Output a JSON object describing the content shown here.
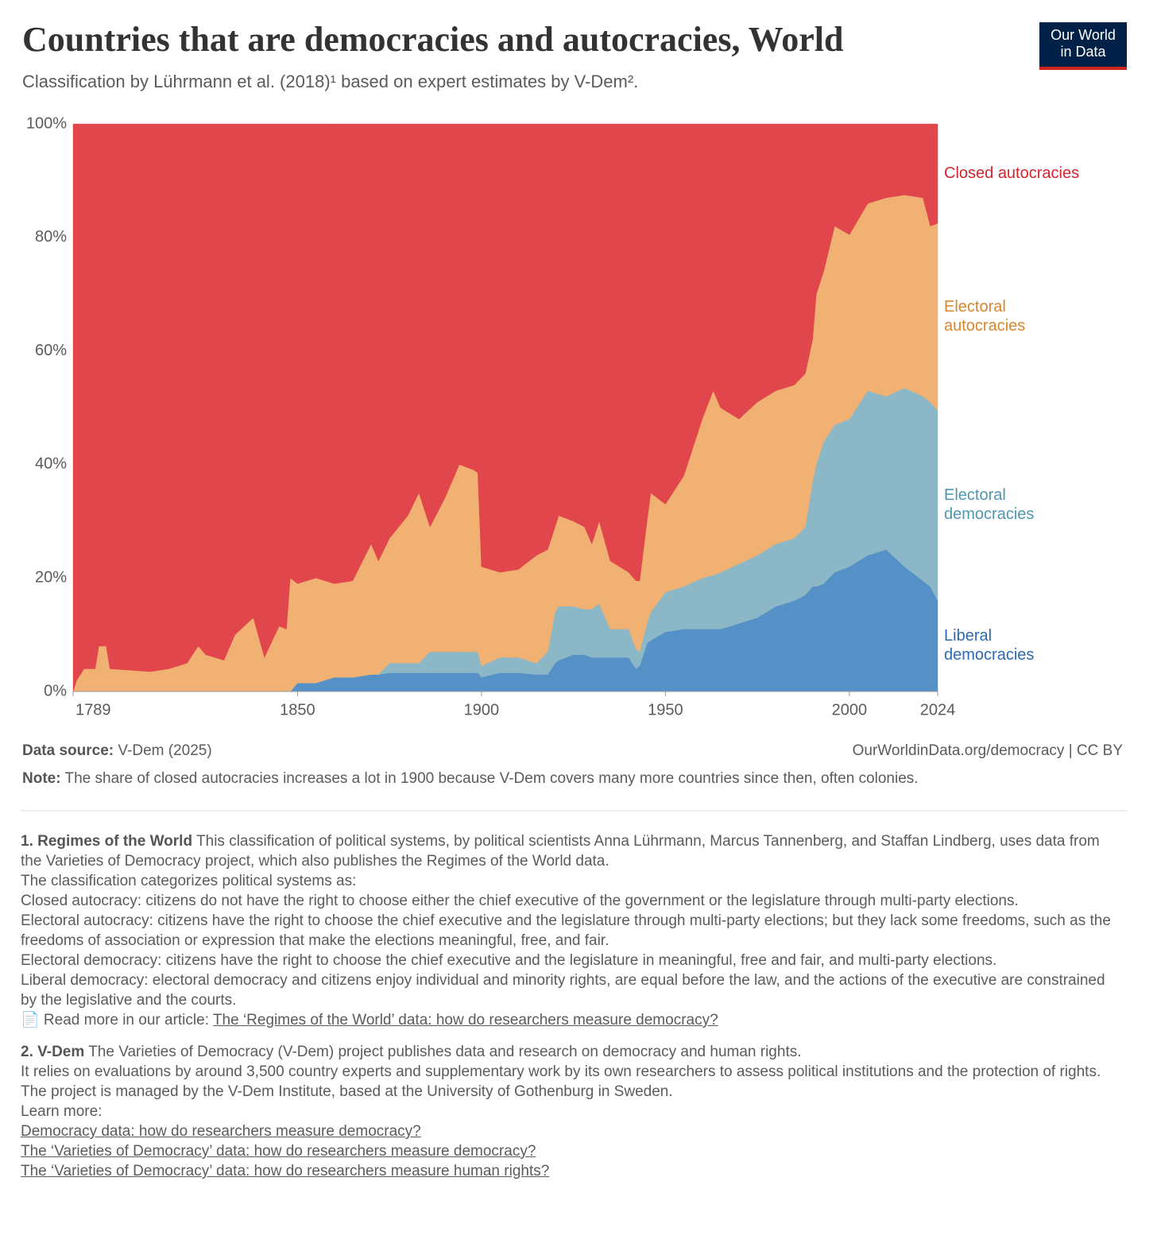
{
  "chart_data": {
    "type": "stacked_area",
    "title": "Countries that are democracies and autocracies, World",
    "subtitle": "Classification by Lührmann et al. (2018)¹ based on expert estimates by V-Dem².",
    "x": [
      1789,
      1790,
      1792,
      1795,
      1796,
      1798,
      1799,
      1810,
      1815,
      1820,
      1823,
      1825,
      1830,
      1833,
      1838,
      1841,
      1845,
      1847,
      1848,
      1850,
      1855,
      1860,
      1865,
      1870,
      1872,
      1875,
      1880,
      1883,
      1886,
      1890,
      1894,
      1898,
      1899,
      1900,
      1905,
      1910,
      1915,
      1918,
      1920,
      1921,
      1925,
      1928,
      1930,
      1932,
      1935,
      1940,
      1942,
      1943,
      1945,
      1946,
      1950,
      1955,
      1960,
      1963,
      1965,
      1970,
      1975,
      1980,
      1985,
      1988,
      1990,
      1991,
      1993,
      1996,
      2000,
      2005,
      2010,
      2015,
      2020,
      2022,
      2024
    ],
    "series": [
      {
        "name": "Liberal democracies",
        "color": "#5591c6",
        "label_color": "#2d6ab3",
        "values": [
          0,
          0,
          0,
          0,
          0,
          0,
          0,
          0,
          0,
          0,
          0,
          0,
          0,
          0,
          0,
          0,
          0,
          0,
          0,
          1.5,
          1.5,
          2.5,
          2.5,
          3,
          3,
          3.3,
          3.3,
          3.3,
          3.3,
          3.3,
          3.3,
          3.3,
          3.3,
          2.5,
          3.3,
          3.3,
          3,
          3,
          5,
          5.5,
          6.5,
          6.5,
          6,
          6,
          6,
          6,
          4,
          4.5,
          8.5,
          9,
          10.5,
          11,
          11,
          11,
          11,
          12,
          13,
          15,
          16,
          17,
          18.5,
          18.5,
          19,
          21,
          22,
          24,
          25,
          22,
          19.5,
          18.5,
          16
        ]
      },
      {
        "name": "Electoral democracies",
        "color": "#8bb7c7",
        "label_color": "#4f97b1",
        "values": [
          0,
          0,
          0,
          0,
          0,
          0,
          0,
          0,
          0,
          0,
          0,
          0,
          0,
          0,
          0,
          0,
          0,
          0,
          0,
          0,
          0,
          0,
          0,
          0,
          0,
          1.7,
          1.7,
          1.7,
          3.7,
          3.7,
          3.7,
          3.7,
          3.7,
          2,
          2.7,
          2.7,
          2,
          4,
          9,
          9.5,
          8.5,
          8,
          8.5,
          9.5,
          5,
          5,
          3.5,
          2.5,
          3.5,
          5,
          7,
          7.5,
          9,
          9.5,
          10,
          10.5,
          11,
          11,
          11,
          12,
          18.5,
          21.5,
          25,
          26,
          26,
          29,
          27,
          31.5,
          32.5,
          32.5,
          33.5
        ]
      },
      {
        "name": "Electoral autocracies",
        "color": "#f0b173",
        "label_color": "#d9862c",
        "values": [
          0,
          2,
          4,
          4,
          8,
          8,
          4,
          3.5,
          4,
          5,
          8,
          6.5,
          5.5,
          10,
          13,
          6,
          11.5,
          11,
          20,
          17.5,
          18.5,
          16.5,
          17,
          23,
          20,
          22,
          26,
          30,
          22,
          27,
          33,
          32,
          31.5,
          17.5,
          15,
          15.5,
          19,
          18,
          15,
          16,
          15,
          14.5,
          11.5,
          14.5,
          12,
          10,
          12,
          12.5,
          18,
          21,
          15.5,
          19.5,
          28,
          32.5,
          29,
          25.5,
          27,
          27,
          27,
          27,
          25,
          30,
          30,
          35,
          32.5,
          33,
          35,
          34,
          35,
          31,
          33
        ]
      },
      {
        "name": "Closed autocracies",
        "color": "#e0464b",
        "label_color": "#d42430",
        "values": [
          100,
          98,
          96,
          96,
          92,
          92,
          96,
          96.5,
          96,
          95,
          92,
          93.5,
          94.5,
          90,
          87,
          94,
          88.5,
          89,
          80,
          81,
          80,
          81,
          80.5,
          74,
          77,
          73,
          69,
          65,
          71,
          66,
          60,
          61,
          61.5,
          78,
          79,
          78.5,
          76,
          75,
          71,
          69,
          70,
          71,
          74,
          70,
          77,
          79,
          80.5,
          80.5,
          70,
          65,
          67,
          62,
          52,
          47,
          50,
          52,
          49,
          47,
          46,
          44,
          38,
          30,
          26,
          18,
          19.5,
          14,
          13,
          12.5,
          13,
          18,
          17.5
        ]
      }
    ],
    "xlim": [
      1789,
      2024
    ],
    "xticks": [
      1789,
      1850,
      1900,
      1950,
      2000,
      2024
    ],
    "ylim": [
      0,
      100
    ],
    "yticks": [
      {
        "value": 0,
        "label": "0%"
      },
      {
        "value": 20,
        "label": "20%"
      },
      {
        "value": 40,
        "label": "40%"
      },
      {
        "value": 60,
        "label": "60%"
      },
      {
        "value": 80,
        "label": "80%"
      },
      {
        "value": 100,
        "label": "100%"
      }
    ],
    "grid": true
  },
  "logo": [
    "Our World",
    "in Data"
  ],
  "footer": {
    "source_label": "Data source:",
    "source": "V-Dem (2025)",
    "url": "OurWorldinData.org/democracy | CC BY",
    "note_label": "Note:",
    "note": "The share of closed autocracies increases a lot in 1900 because V-Dem covers many more countries since then, often colonies."
  },
  "footnotes": [
    {
      "head": "1. Regimes of the World",
      "paragraphs": [
        "This classification of political systems, by political scientists Anna Lührmann, Marcus Tannenberg, and Staffan Lindberg, uses data from the Varieties of Democracy project, which also publishes the Regimes of the World data.",
        "The classification categorizes political systems as:",
        "Closed autocracy: citizens do not have the right to choose either the chief executive of the government or the legislature through multi-party elections.",
        "Electoral autocracy: citizens have the right to choose the chief executive and the legislature through multi-party elections; but they lack some freedoms, such as the freedoms of association or expression that make the elections meaningful, free, and fair.",
        "Electoral democracy: citizens have the right to choose the chief executive and the legislature in meaningful, free and fair, and multi-party elections.",
        "Liberal democracy: electoral democracy and citizens enjoy individual and minority rights, are equal before the law, and the actions of the executive are constrained by the legislative and the courts."
      ],
      "read_more": "📄 Read more in our article:",
      "links": [
        "The ‘Regimes of the World’ data: how do researchers measure democracy?"
      ]
    },
    {
      "head": "2. V-Dem",
      "paragraphs": [
        "The Varieties of Democracy (V-Dem) project publishes data and research on democracy and human rights.",
        "It relies on evaluations by around 3,500 country experts and supplementary work by its own researchers to assess political institutions and the protection of rights.",
        "The project is managed by the V-Dem Institute, based at the University of Gothenburg in Sweden.",
        "Learn more:"
      ],
      "links": [
        "Democracy data: how do researchers measure democracy?",
        "The ‘Varieties of Democracy’ data: how do researchers measure democracy?",
        "The ‘Varieties of Democracy’ data: how do researchers measure human rights?"
      ]
    }
  ]
}
